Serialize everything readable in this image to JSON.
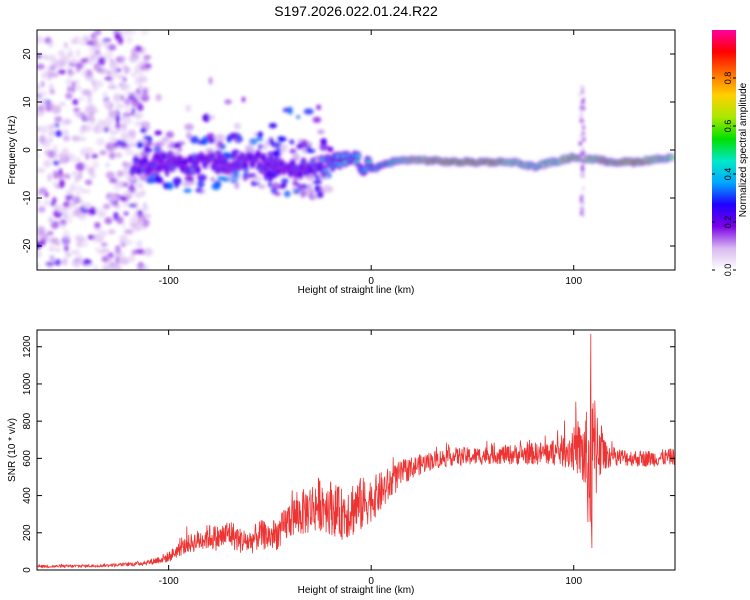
{
  "title": "S197.2026.022.01.24.R22",
  "chart_data": [
    {
      "type": "heatmap",
      "xlabel": "Height of straight line (km)",
      "ylabel": "Frequency (Hz)",
      "xlim": [
        -165,
        150
      ],
      "ylim": [
        -25,
        25
      ],
      "xticks": [
        -100,
        0,
        100
      ],
      "xtick_labels": [
        "-100",
        "0",
        "100"
      ],
      "yticks": [
        -20,
        -10,
        0,
        10,
        20
      ],
      "ytick_labels": [
        "-20",
        "-10",
        "0",
        "10",
        "20"
      ],
      "colorbar": {
        "label": "Normalized spectral amplitude",
        "range": [
          0,
          1
        ],
        "ticks": [
          0.0,
          0.2,
          0.4,
          0.6,
          0.8
        ],
        "tick_labels": [
          "0.0",
          "0.2",
          "0.4",
          "0.6",
          "0.8"
        ],
        "colormap": [
          "#ffffff",
          "#d8b8f0",
          "#7a00e8",
          "#2000ff",
          "#00a8ff",
          "#00e8c8",
          "#00e000",
          "#a8e800",
          "#ffd000",
          "#ff7000",
          "#ff0000",
          "#ff00a0"
        ]
      },
      "ridge": {
        "x": [
          -115,
          -100,
          -90,
          -80,
          -70,
          -60,
          -50,
          -40,
          -30,
          -20,
          -10,
          0,
          10,
          20,
          40,
          60,
          70,
          80,
          90,
          100,
          110,
          120,
          130,
          140,
          148
        ],
        "freq": [
          -3.5,
          -2.5,
          -3.0,
          -2.5,
          -3.5,
          -2.0,
          -3.0,
          -3.5,
          -4.0,
          -3.0,
          -2.0,
          -4.0,
          -2.5,
          -2.0,
          -2.5,
          -2.5,
          -2.5,
          -3.5,
          -2.5,
          -1.5,
          -2.0,
          -2.5,
          -2.5,
          -2.0,
          -1.5
        ],
        "amplitude": [
          0.35,
          0.3,
          0.35,
          0.3,
          0.3,
          0.35,
          0.3,
          0.3,
          0.35,
          0.4,
          0.45,
          0.5,
          0.6,
          0.85,
          0.95,
          0.95,
          0.8,
          0.7,
          0.75,
          0.9,
          0.85,
          0.9,
          0.95,
          0.85,
          0.8
        ]
      }
    },
    {
      "type": "line",
      "xlabel": "Height of straight line (km)",
      "ylabel": "SNR (10 * v/v)",
      "xlim": [
        -165,
        150
      ],
      "ylim": [
        0,
        1290
      ],
      "xticks": [
        -100,
        0,
        100
      ],
      "xtick_labels": [
        "-100",
        "0",
        "100"
      ],
      "yticks": [
        0,
        200,
        400,
        600,
        800,
        1000,
        1200
      ],
      "ytick_labels": [
        "0",
        "200",
        "400",
        "600",
        "800",
        "1000",
        "1200"
      ],
      "series": [
        {
          "name": "SNR",
          "color": "#ee3333",
          "x": [
            -165,
            -150,
            -140,
            -130,
            -120,
            -110,
            -100,
            -95,
            -90,
            -85,
            -80,
            -75,
            -70,
            -65,
            -60,
            -55,
            -50,
            -45,
            -40,
            -35,
            -30,
            -25,
            -20,
            -15,
            -10,
            -5,
            0,
            5,
            10,
            15,
            20,
            30,
            40,
            50,
            60,
            70,
            80,
            90,
            95,
            100,
            103,
            106,
            108,
            110,
            112,
            115,
            120,
            130,
            140,
            150
          ],
          "y": [
            20,
            20,
            22,
            25,
            30,
            40,
            70,
            110,
            140,
            160,
            180,
            170,
            200,
            160,
            150,
            190,
            180,
            200,
            280,
            300,
            330,
            360,
            340,
            300,
            330,
            350,
            380,
            420,
            470,
            520,
            550,
            590,
            610,
            610,
            620,
            620,
            625,
            630,
            640,
            650,
            640,
            600,
            500,
            620,
            700,
            620,
            610,
            600,
            600,
            610
          ],
          "noise": [
            8,
            8,
            8,
            8,
            10,
            15,
            30,
            40,
            50,
            60,
            70,
            70,
            80,
            70,
            70,
            80,
            80,
            90,
            110,
            120,
            140,
            150,
            150,
            140,
            160,
            150,
            120,
            110,
            90,
            70,
            60,
            50,
            50,
            50,
            50,
            55,
            60,
            70,
            90,
            120,
            150,
            250,
            400,
            350,
            250,
            80,
            50,
            45,
            45,
            45
          ]
        }
      ]
    }
  ]
}
